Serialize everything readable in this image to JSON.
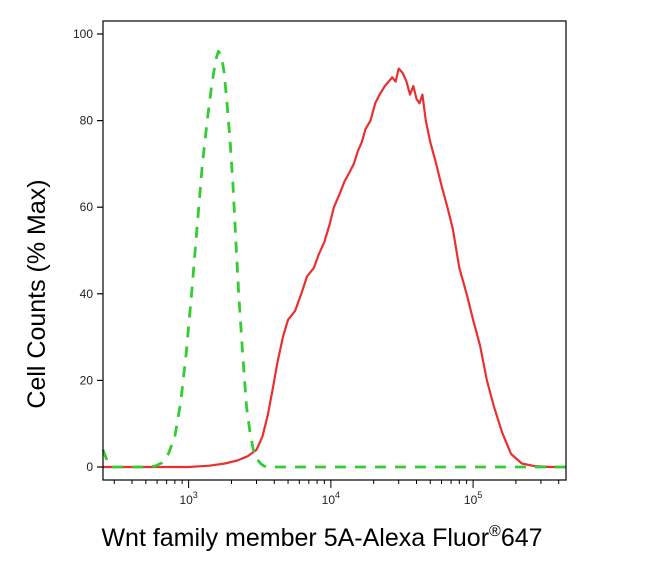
{
  "chart_data": {
    "type": "line",
    "title": "",
    "xlabel": "Wnt family member 5A-Alexa Fluor",
    "xlabel_superscript": "®",
    "xlabel_suffix": "647",
    "ylabel": "Cell Counts (% Max)",
    "x_scale": "log",
    "xlim": [
      250,
      450000
    ],
    "ylim": [
      -3,
      103
    ],
    "y_ticks": [
      0,
      20,
      40,
      60,
      80,
      100
    ],
    "x_major_ticks": [
      {
        "value": 1000,
        "base": "10",
        "exp": "3"
      },
      {
        "value": 10000,
        "base": "10",
        "exp": "4"
      },
      {
        "value": 100000,
        "base": "10",
        "exp": "5"
      }
    ],
    "grid": false,
    "series": [
      {
        "color": "#e83030",
        "style": "solid",
        "x": [
          250,
          400,
          700,
          1000,
          1400,
          1800,
          2200,
          2600,
          3000,
          3300,
          3600,
          3900,
          4200,
          4600,
          5000,
          5600,
          6200,
          6800,
          7600,
          8200,
          9000,
          9800,
          10500,
          11500,
          12500,
          13500,
          14500,
          15500,
          16500,
          17500,
          19000,
          20500,
          22000,
          24000,
          25500,
          27000,
          28500,
          30000,
          32000,
          34000,
          36000,
          38000,
          40000,
          42000,
          44000,
          46500,
          50000,
          55000,
          60000,
          66000,
          72000,
          80000,
          90000,
          100000,
          112000,
          125000,
          140000,
          160000,
          185000,
          220000,
          270000,
          350000,
          450000
        ],
        "y": [
          0,
          0,
          0,
          0,
          0.3,
          0.8,
          1.5,
          2.5,
          4,
          7,
          12,
          18,
          24,
          30,
          34,
          36,
          40,
          44,
          46,
          49,
          52,
          56,
          60,
          63,
          66,
          68,
          70,
          73,
          75,
          78,
          80,
          84,
          86,
          88,
          89,
          90,
          89,
          92,
          91,
          89,
          86,
          88,
          85,
          84,
          86,
          80,
          75,
          70,
          65,
          60,
          55,
          46,
          40,
          34,
          28,
          20,
          14,
          8,
          3,
          0.8,
          0.2,
          0,
          0
        ]
      },
      {
        "color": "#33cc33",
        "style": "dashed",
        "x": [
          250,
          270,
          290,
          320,
          360,
          420,
          500,
          580,
          650,
          720,
          800,
          880,
          960,
          1050,
          1150,
          1250,
          1350,
          1450,
          1550,
          1620,
          1700,
          1780,
          1860,
          1950,
          2050,
          2150,
          2250,
          2400,
          2550,
          2700,
          2850,
          3000,
          3200,
          3400,
          3700,
          4100,
          5000,
          10000,
          100000,
          450000
        ],
        "y": [
          4,
          1,
          0,
          0,
          0,
          0,
          0,
          0.2,
          1,
          3,
          7,
          15,
          26,
          40,
          56,
          70,
          80,
          88,
          94,
          96,
          95,
          91,
          84,
          76,
          65,
          52,
          40,
          26,
          14,
          8,
          4,
          2,
          0.8,
          0.2,
          0,
          0,
          0,
          0,
          0,
          0
        ]
      }
    ]
  }
}
